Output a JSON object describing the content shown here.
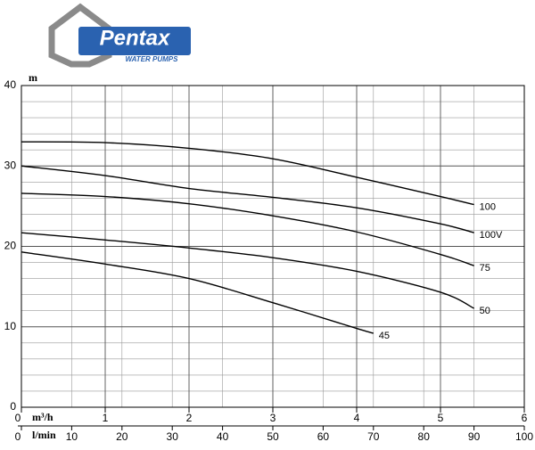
{
  "chart_data": {
    "type": "line",
    "logo": {
      "name": "Pentax",
      "tagline": "WATER PUMPS"
    },
    "y_label": "m",
    "x_label": "m³/h",
    "x2_label": "l/min",
    "xlim": [
      0,
      6
    ],
    "xticks": [
      0,
      1,
      2,
      3,
      4,
      5,
      6
    ],
    "x2lim": [
      0,
      100
    ],
    "x2ticks": [
      0,
      10,
      20,
      30,
      40,
      50,
      60,
      70,
      80,
      90,
      100
    ],
    "ylim": [
      0,
      40
    ],
    "yticks": [
      0,
      10,
      20,
      30,
      40
    ],
    "grid": true,
    "series": [
      {
        "name": "100",
        "color": "#000000",
        "x": [
          0,
          1,
          2,
          3,
          4,
          5,
          5.4
        ],
        "values": [
          33,
          32.9,
          32.2,
          30.9,
          28.6,
          26.2,
          25.2
        ]
      },
      {
        "name": "100V",
        "color": "#000000",
        "x": [
          0,
          1,
          2,
          3,
          4,
          5,
          5.4
        ],
        "values": [
          30,
          28.8,
          27.2,
          26.1,
          24.8,
          22.8,
          21.7
        ]
      },
      {
        "name": "75",
        "color": "#000000",
        "x": [
          0,
          1,
          2,
          3,
          4,
          5,
          5.4
        ],
        "values": [
          26.6,
          26.2,
          25.3,
          23.8,
          21.8,
          19,
          17.6
        ]
      },
      {
        "name": "50",
        "color": "#000000",
        "x": [
          0,
          1,
          2,
          3,
          4,
          5,
          5.4
        ],
        "values": [
          21.7,
          20.8,
          19.8,
          18.6,
          16.9,
          14.3,
          12.3
        ]
      },
      {
        "name": "45",
        "color": "#000000",
        "x": [
          0,
          1,
          2,
          3,
          4,
          4.2
        ],
        "values": [
          19.3,
          17.8,
          16,
          13,
          9.8,
          9.2
        ]
      }
    ]
  }
}
